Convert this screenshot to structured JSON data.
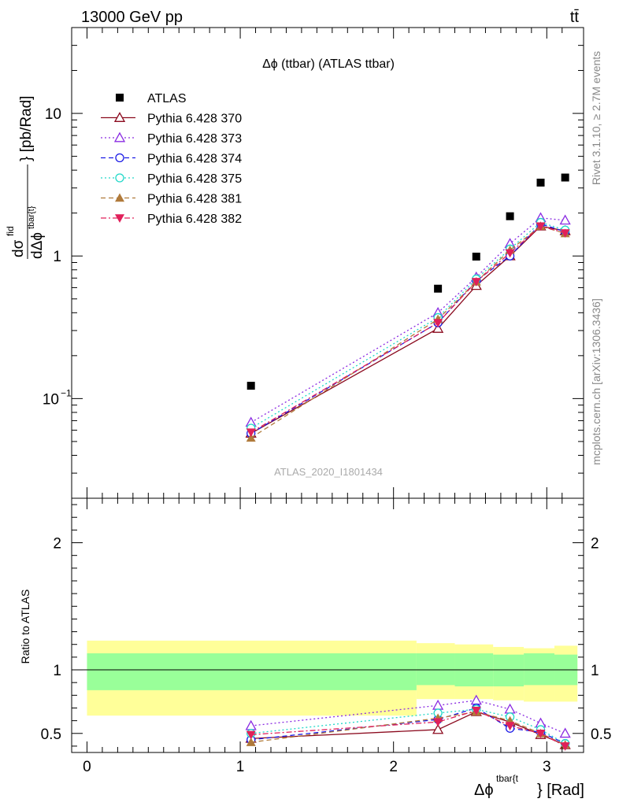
{
  "header": {
    "energy_label": "13000 GeV pp",
    "process_label": "tt̄",
    "side_label_top": "Rivet 3.1.10, ≥ 2.7M events",
    "side_label_bottom": "mcplots.cern.ch [arXiv:1306.3436]",
    "watermark": "ATLAS_2020_I1801434"
  },
  "chart_data": [
    {
      "panel": "main",
      "type": "line",
      "title": "Δϕ (ttbar) (ATLAS ttbar)",
      "ylabel_main": "} [pb/Rad]",
      "ylabel_numer": "dσ",
      "ylabel_numer_sup": "fid",
      "ylabel_denom": "dΔϕ",
      "ylabel_denom_sup": "tbar{t}",
      "xlabel_main": "} [Rad]",
      "xlabel_sym": "Δϕ",
      "xlabel_sup": "tbar{t",
      "y_scale": "log",
      "ylim": [
        0.02,
        40
      ],
      "xlim": [
        -0.1,
        3.24
      ],
      "ytick_labels": [
        "10^-1",
        "1",
        "10"
      ],
      "legend_position": "top-left",
      "x": [
        1.07,
        2.29,
        2.54,
        2.76,
        2.96,
        3.12
      ],
      "series": [
        {
          "name": "ATLAS",
          "style": "data",
          "color": "#000000",
          "marker": "square",
          "values": [
            0.123,
            0.59,
            0.99,
            1.9,
            3.27,
            3.55
          ]
        },
        {
          "name": "Pythia 6.428 370",
          "color": "#8b0a1e",
          "marker": "triangle-open",
          "dash": "solid",
          "values": [
            0.057,
            0.31,
            0.62,
            1.0,
            1.62,
            1.5
          ]
        },
        {
          "name": "Pythia 6.428 373",
          "color": "#8a2be2",
          "marker": "triangle-open",
          "dash": "dotted",
          "values": [
            0.068,
            0.4,
            0.71,
            1.22,
            1.85,
            1.78
          ]
        },
        {
          "name": "Pythia 6.428 374",
          "color": "#1a1ae6",
          "marker": "circle-open",
          "dash": "dashed",
          "values": [
            0.057,
            0.34,
            0.67,
            1.0,
            1.68,
            1.48
          ]
        },
        {
          "name": "Pythia 6.428 375",
          "color": "#20d8c8",
          "marker": "circle-open",
          "dash": "dotted",
          "values": [
            0.062,
            0.37,
            0.69,
            1.12,
            1.72,
            1.52
          ]
        },
        {
          "name": "Pythia 6.428 381",
          "color": "#b07a3a",
          "marker": "triangle-filled",
          "dash": "dashed",
          "values": [
            0.053,
            0.36,
            0.66,
            1.1,
            1.62,
            1.44
          ]
        },
        {
          "name": "Pythia 6.428 382",
          "color": "#e0205a",
          "marker": "triangle-down-filled",
          "dash": "dashdot",
          "values": [
            0.058,
            0.34,
            0.66,
            1.05,
            1.62,
            1.45
          ]
        }
      ]
    },
    {
      "panel": "ratio",
      "type": "line",
      "ylabel": "Ratio to ATLAS",
      "xlabel": "Δϕ^{tbar{t}} [Rad]",
      "ylim": [
        0.35,
        2.35
      ],
      "xlim": [
        -0.1,
        3.24
      ],
      "xtick_labels": [
        "0",
        "1",
        "2",
        "3"
      ],
      "ytick_labels": [
        "0.5",
        "1",
        "2"
      ],
      "bins": [
        0,
        2.15,
        2.4,
        2.65,
        2.85,
        3.05,
        3.2
      ],
      "band_green_low": [
        0.84,
        0.88,
        0.87,
        0.87,
        0.88,
        0.88
      ],
      "band_green_high": [
        1.13,
        1.13,
        1.13,
        1.12,
        1.13,
        1.12
      ],
      "band_yellow_low": [
        0.64,
        0.77,
        0.77,
        0.76,
        0.75,
        0.75
      ],
      "band_yellow_high": [
        1.23,
        1.21,
        1.2,
        1.18,
        1.17,
        1.19
      ],
      "x": [
        1.07,
        2.29,
        2.54,
        2.76,
        2.96,
        3.12
      ],
      "series": [
        {
          "name": "Pythia 6.428 370",
          "values": [
            0.46,
            0.53,
            0.67,
            0.59,
            0.49,
            0.41
          ]
        },
        {
          "name": "Pythia 6.428 373",
          "values": [
            0.56,
            0.72,
            0.76,
            0.69,
            0.58,
            0.5
          ]
        },
        {
          "name": "Pythia 6.428 374",
          "values": [
            0.45,
            0.61,
            0.7,
            0.54,
            0.51,
            0.42
          ]
        },
        {
          "name": "Pythia 6.428 375",
          "values": [
            0.5,
            0.66,
            0.69,
            0.63,
            0.53,
            0.42
          ]
        },
        {
          "name": "Pythia 6.428 381",
          "values": [
            0.43,
            0.62,
            0.67,
            0.6,
            0.5,
            0.41
          ]
        },
        {
          "name": "Pythia 6.428 382",
          "values": [
            0.49,
            0.59,
            0.68,
            0.56,
            0.5,
            0.4
          ]
        }
      ]
    }
  ]
}
